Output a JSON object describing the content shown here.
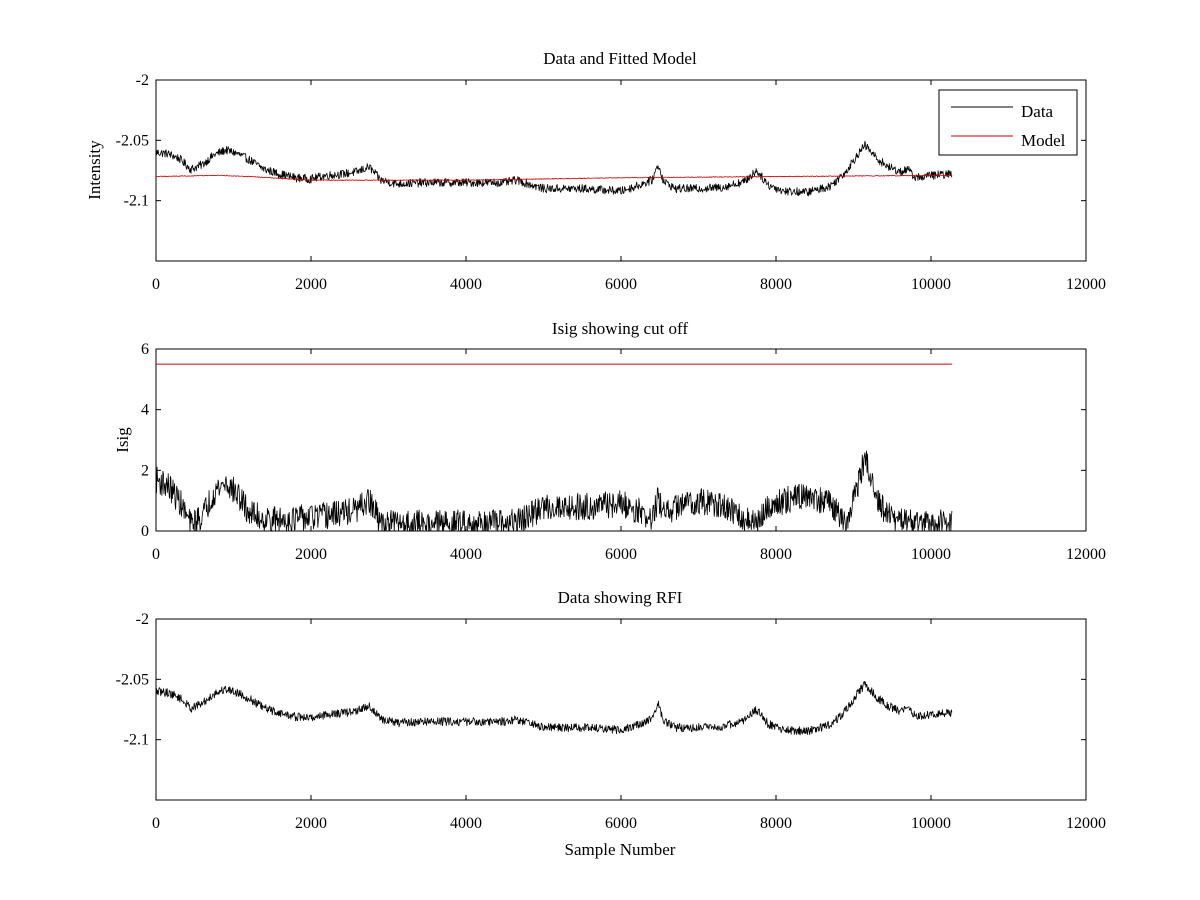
{
  "chart_data": [
    {
      "type": "line",
      "title": "Data and Fitted Model",
      "xlabel": "",
      "ylabel": "Intensity",
      "xlim": [
        0,
        12000
      ],
      "ylim": [
        -2.15,
        -2.0
      ],
      "xticks": [
        "0",
        "2000",
        "4000",
        "6000",
        "8000",
        "10000",
        "12000"
      ],
      "xtick_values": [
        0,
        2000,
        4000,
        6000,
        8000,
        10000,
        12000
      ],
      "yticks": [
        "-2",
        "-2.05",
        "-2.1"
      ],
      "ytick_values": [
        -2.0,
        -2.05,
        -2.1
      ],
      "legend": {
        "placement": "top-right",
        "entries": [
          "Data",
          "Model"
        ]
      },
      "series": [
        {
          "name": "Data",
          "color": "#000000",
          "noise": 0.0035,
          "x": [
            0,
            150,
            300,
            450,
            600,
            750,
            900,
            1050,
            1200,
            1400,
            1600,
            1800,
            2000,
            2200,
            2400,
            2600,
            2750,
            2900,
            3100,
            3500,
            4000,
            4500,
            4650,
            4800,
            5000,
            5500,
            6000,
            6200,
            6400,
            6480,
            6550,
            6700,
            7000,
            7300,
            7600,
            7750,
            7900,
            8100,
            8400,
            8700,
            8900,
            9050,
            9150,
            9300,
            9450,
            9600,
            9700,
            9800,
            10000,
            10270
          ],
          "y": [
            -2.06,
            -2.061,
            -2.065,
            -2.074,
            -2.07,
            -2.062,
            -2.058,
            -2.061,
            -2.066,
            -2.074,
            -2.078,
            -2.081,
            -2.082,
            -2.079,
            -2.078,
            -2.076,
            -2.072,
            -2.083,
            -2.086,
            -2.085,
            -2.085,
            -2.085,
            -2.083,
            -2.086,
            -2.09,
            -2.09,
            -2.092,
            -2.088,
            -2.083,
            -2.07,
            -2.084,
            -2.09,
            -2.09,
            -2.089,
            -2.084,
            -2.075,
            -2.087,
            -2.092,
            -2.093,
            -2.088,
            -2.076,
            -2.062,
            -2.054,
            -2.065,
            -2.072,
            -2.076,
            -2.074,
            -2.081,
            -2.079,
            -2.078
          ]
        },
        {
          "name": "Model",
          "color": "#cc0000",
          "noise": 0.0003,
          "x": [
            0,
            800,
            1200,
            2000,
            2800,
            4000,
            6000,
            8000,
            10270
          ],
          "y": [
            -2.08,
            -2.079,
            -2.08,
            -2.083,
            -2.083,
            -2.083,
            -2.081,
            -2.08,
            -2.079
          ]
        }
      ]
    },
    {
      "type": "line",
      "title": "Isig showing cut off",
      "xlabel": "",
      "ylabel": "Isig",
      "xlim": [
        0,
        12000
      ],
      "ylim": [
        0,
        6
      ],
      "xticks": [
        "0",
        "2000",
        "4000",
        "6000",
        "8000",
        "10000",
        "12000"
      ],
      "xtick_values": [
        0,
        2000,
        4000,
        6000,
        8000,
        10000,
        12000
      ],
      "yticks": [
        "0",
        "2",
        "4",
        "6"
      ],
      "ytick_values": [
        0,
        2,
        4,
        6
      ],
      "series": [
        {
          "color": "#000000",
          "noise": 0.45,
          "clip_min": 0,
          "x": [
            0,
            150,
            300,
            450,
            600,
            750,
            900,
            1050,
            1200,
            1400,
            1600,
            1800,
            2000,
            2200,
            2400,
            2600,
            2750,
            2900,
            3100,
            3500,
            4000,
            4500,
            4650,
            4800,
            5000,
            5500,
            6000,
            6200,
            6400,
            6480,
            6550,
            6700,
            7000,
            7300,
            7600,
            7750,
            7900,
            8100,
            8400,
            8700,
            8900,
            9050,
            9150,
            9300,
            9450,
            9600,
            9700,
            9800,
            10000,
            10270
          ],
          "y": [
            1.7,
            1.5,
            1.0,
            0.2,
            0.5,
            1.3,
            1.6,
            1.2,
            0.6,
            0.4,
            0.35,
            0.4,
            0.45,
            0.5,
            0.6,
            0.7,
            1.0,
            0.25,
            0.25,
            0.25,
            0.25,
            0.25,
            0.3,
            0.45,
            0.8,
            0.8,
            0.9,
            0.7,
            0.35,
            1.1,
            0.5,
            0.8,
            1.0,
            0.8,
            0.4,
            0.2,
            0.8,
            1.0,
            1.2,
            0.9,
            0.15,
            1.5,
            2.4,
            1.0,
            0.5,
            0.3,
            0.4,
            0.2,
            0.2,
            0.35
          ]
        },
        {
          "color": "#cc0000",
          "noise": 0,
          "x": [
            0,
            10270
          ],
          "y": [
            5.5,
            5.5
          ]
        }
      ]
    },
    {
      "type": "line",
      "title": "Data showing RFI",
      "xlabel": "Sample Number",
      "ylabel": "",
      "xlim": [
        0,
        12000
      ],
      "ylim": [
        -2.15,
        -2.0
      ],
      "xticks": [
        "0",
        "2000",
        "4000",
        "6000",
        "8000",
        "10000",
        "12000"
      ],
      "xtick_values": [
        0,
        2000,
        4000,
        6000,
        8000,
        10000,
        12000
      ],
      "yticks": [
        "-2",
        "-2.05",
        "-2.1"
      ],
      "ytick_values": [
        -2.0,
        -2.05,
        -2.1
      ],
      "series": [
        {
          "color": "#000000",
          "noise": 0.0035,
          "x": [
            0,
            150,
            300,
            450,
            600,
            750,
            900,
            1050,
            1200,
            1400,
            1600,
            1800,
            2000,
            2200,
            2400,
            2600,
            2750,
            2900,
            3100,
            3500,
            4000,
            4500,
            4650,
            4800,
            5000,
            5500,
            6000,
            6200,
            6400,
            6480,
            6550,
            6700,
            7000,
            7300,
            7600,
            7750,
            7900,
            8100,
            8400,
            8700,
            8900,
            9050,
            9150,
            9300,
            9450,
            9600,
            9700,
            9800,
            10000,
            10270
          ],
          "y": [
            -2.06,
            -2.061,
            -2.065,
            -2.074,
            -2.07,
            -2.062,
            -2.058,
            -2.061,
            -2.066,
            -2.074,
            -2.078,
            -2.081,
            -2.082,
            -2.079,
            -2.078,
            -2.076,
            -2.072,
            -2.083,
            -2.086,
            -2.085,
            -2.085,
            -2.085,
            -2.083,
            -2.086,
            -2.09,
            -2.09,
            -2.092,
            -2.088,
            -2.083,
            -2.07,
            -2.084,
            -2.09,
            -2.09,
            -2.089,
            -2.084,
            -2.075,
            -2.087,
            -2.092,
            -2.093,
            -2.088,
            -2.076,
            -2.062,
            -2.054,
            -2.065,
            -2.072,
            -2.076,
            -2.074,
            -2.081,
            -2.079,
            -2.078
          ]
        }
      ]
    }
  ]
}
